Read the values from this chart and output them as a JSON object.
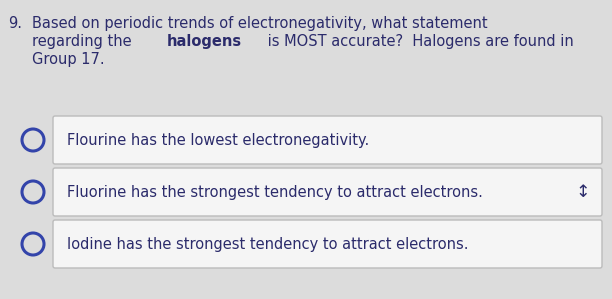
{
  "background_color": "#dcdcdc",
  "question_number": "9.",
  "line1": "Based on periodic trends of electronegativity, what statement",
  "line2_pre": "regarding the ",
  "line2_bold": "halogens",
  "line2_post": " is MOST accurate?  Halogens are found in",
  "line3": "Group 17.",
  "options": [
    {
      "text": "Flourine has the lowest electronegativity.",
      "has_right_symbol": false,
      "right_symbol": ""
    },
    {
      "text": "Fluorine has the strongest tendency to attract electrons.",
      "has_right_symbol": true,
      "right_symbol": "↕"
    },
    {
      "text": "Iodine has the strongest tendency to attract electrons.",
      "has_right_symbol": false,
      "right_symbol": ""
    }
  ],
  "text_color": "#2b2b6b",
  "box_bg": "#f5f5f5",
  "box_border": "#bbbbbb",
  "circle_color": "#3344aa",
  "q_fontsize": 10.5,
  "opt_fontsize": 10.5
}
